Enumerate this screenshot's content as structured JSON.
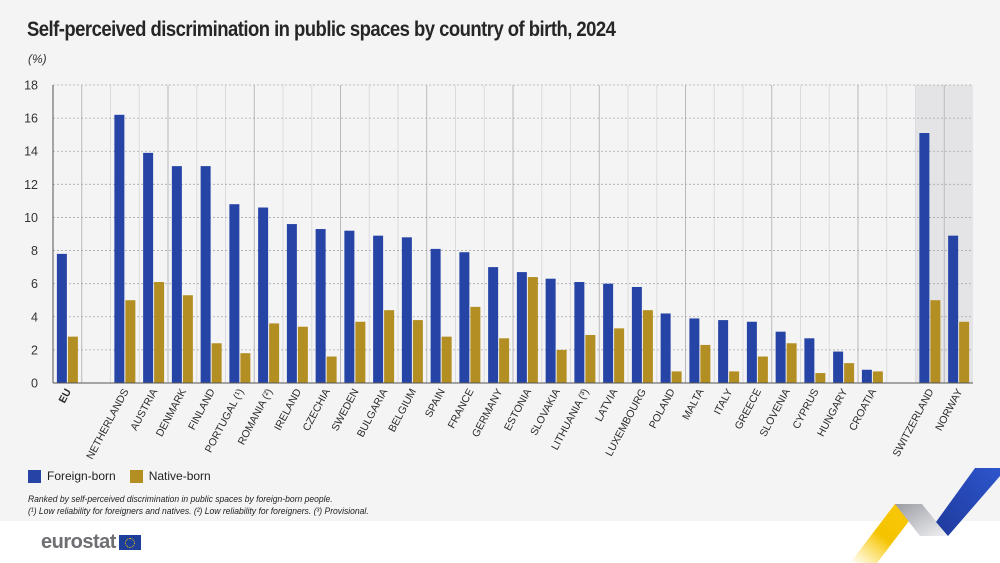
{
  "title": "Self-perceived discrimination in public spaces by country of birth, 2024",
  "unit_label": "(%)",
  "legend": {
    "items": [
      {
        "label": "Foreign-born",
        "color": "#2644a6"
      },
      {
        "label": "Native-born",
        "color": "#b38e22"
      }
    ]
  },
  "notes": {
    "line1": "Ranked by self-perceived discrimination in public spaces by foreign-born people.",
    "line2": "(¹) Low reliability for foreigners and natives. (²) Low reliability for foreigners. (³) Provisional."
  },
  "footer": {
    "logo_text": "eurostat"
  },
  "colors": {
    "foreign": "#2644a6",
    "native": "#b38e22",
    "highlight_band": "#e4e4e6",
    "background": "#f4f4f5"
  },
  "chart_data": {
    "type": "bar",
    "title": "Self-perceived discrimination in public spaces by country of birth, 2024",
    "xlabel": "",
    "ylabel": "(%)",
    "ylim": [
      0,
      18
    ],
    "yticks": [
      0,
      2,
      4,
      6,
      8,
      10,
      12,
      14,
      16,
      18
    ],
    "grid": true,
    "legend_position": "bottom-left",
    "categories": [
      "EU",
      "",
      "NETHERLANDS",
      "AUSTRIA",
      "DENMARK",
      "FINLAND",
      "PORTUGAL (¹)",
      "ROMANIA (²)",
      "IRELAND",
      "CZECHIA",
      "SWEDEN",
      "BULGARIA",
      "BELGIUM",
      "SPAIN",
      "FRANCE",
      "GERMANY",
      "ESTONIA",
      "SLOVAKIA",
      "LITHUANIA (³)",
      "LATVIA",
      "LUXEMBOURG",
      "POLAND",
      "MALTA",
      "ITALY",
      "GREECE",
      "SLOVENIA",
      "CYPRUS",
      "HUNGARY",
      "CROATIA",
      "",
      "SWITZERLAND",
      "NORWAY"
    ],
    "highlighted_categories": [
      "SWITZERLAND",
      "NORWAY"
    ],
    "bold_categories": [
      "EU"
    ],
    "series": [
      {
        "name": "Foreign-born",
        "values": [
          7.8,
          null,
          16.2,
          13.9,
          13.1,
          13.1,
          10.8,
          10.6,
          9.6,
          9.3,
          9.2,
          8.9,
          8.8,
          8.1,
          7.9,
          7.0,
          6.7,
          6.3,
          6.1,
          6.0,
          5.8,
          4.2,
          3.9,
          3.8,
          3.7,
          3.1,
          2.7,
          1.9,
          0.8,
          null,
          15.1,
          8.9
        ]
      },
      {
        "name": "Native-born",
        "values": [
          2.8,
          null,
          5.0,
          6.1,
          5.3,
          2.4,
          1.8,
          3.6,
          3.4,
          1.6,
          3.7,
          4.4,
          3.8,
          2.8,
          4.6,
          2.7,
          6.4,
          2.0,
          2.9,
          3.3,
          4.4,
          0.7,
          2.3,
          0.7,
          1.6,
          2.4,
          0.6,
          1.2,
          0.7,
          null,
          5.0,
          3.7
        ]
      }
    ]
  }
}
